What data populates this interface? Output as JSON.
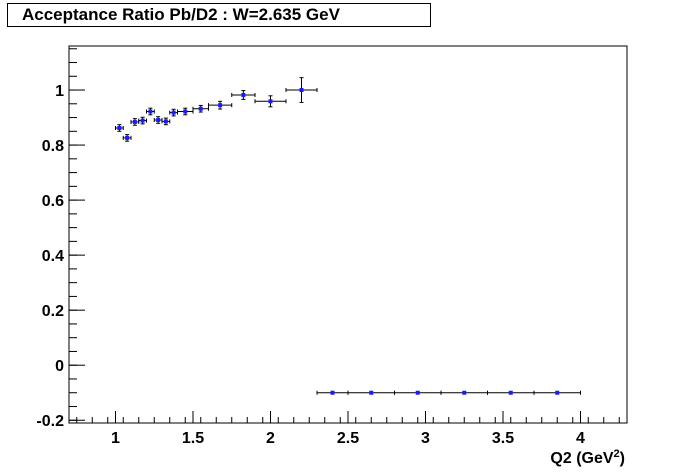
{
  "chart_data": {
    "type": "scatter",
    "title": "Acceptance Ratio Pb/D2 : W=2.635 GeV",
    "xlabel": "Q2 (GeV",
    "xlabel_sup": "2",
    "xlabel_close": ")",
    "ylabel": "",
    "xlim": [
      0.7,
      4.3
    ],
    "ylim": [
      -0.21,
      1.16
    ],
    "x_ticks": [
      1,
      1.5,
      2,
      2.5,
      3,
      3.5,
      4
    ],
    "x_tick_labels": [
      "1",
      "1.5",
      "2",
      "2.5",
      "3",
      "3.5",
      "4"
    ],
    "y_ticks": [
      -0.2,
      0,
      0.2,
      0.4,
      0.6,
      0.8,
      1
    ],
    "y_tick_labels": [
      "-0.2",
      "0",
      "0.2",
      "0.4",
      "0.6",
      "0.8",
      "1"
    ],
    "grid": false,
    "marker_color": "#1a1aff",
    "series": [
      {
        "points": [
          {
            "x": 1.025,
            "y": 0.862,
            "xerr": 0.025,
            "yerr": 0.012
          },
          {
            "x": 1.075,
            "y": 0.826,
            "xerr": 0.025,
            "yerr": 0.012
          },
          {
            "x": 1.125,
            "y": 0.884,
            "xerr": 0.025,
            "yerr": 0.012
          },
          {
            "x": 1.175,
            "y": 0.889,
            "xerr": 0.025,
            "yerr": 0.012
          },
          {
            "x": 1.225,
            "y": 0.922,
            "xerr": 0.025,
            "yerr": 0.012
          },
          {
            "x": 1.275,
            "y": 0.891,
            "xerr": 0.025,
            "yerr": 0.012
          },
          {
            "x": 1.325,
            "y": 0.886,
            "xerr": 0.025,
            "yerr": 0.012
          },
          {
            "x": 1.375,
            "y": 0.918,
            "xerr": 0.025,
            "yerr": 0.012
          },
          {
            "x": 1.45,
            "y": 0.922,
            "xerr": 0.05,
            "yerr": 0.012
          },
          {
            "x": 1.55,
            "y": 0.932,
            "xerr": 0.05,
            "yerr": 0.012
          },
          {
            "x": 1.675,
            "y": 0.945,
            "xerr": 0.075,
            "yerr": 0.014
          },
          {
            "x": 1.825,
            "y": 0.982,
            "xerr": 0.075,
            "yerr": 0.016
          },
          {
            "x": 2.0,
            "y": 0.959,
            "xerr": 0.1,
            "yerr": 0.02
          },
          {
            "x": 2.2,
            "y": 1.0,
            "xerr": 0.1,
            "yerr": 0.045
          },
          {
            "x": 2.4,
            "y": -0.1,
            "xerr": 0.1,
            "yerr": 0
          },
          {
            "x": 2.65,
            "y": -0.1,
            "xerr": 0.15,
            "yerr": 0
          },
          {
            "x": 2.95,
            "y": -0.1,
            "xerr": 0.15,
            "yerr": 0
          },
          {
            "x": 3.25,
            "y": -0.1,
            "xerr": 0.15,
            "yerr": 0
          },
          {
            "x": 3.55,
            "y": -0.1,
            "xerr": 0.15,
            "yerr": 0
          },
          {
            "x": 3.85,
            "y": -0.1,
            "xerr": 0.15,
            "yerr": 0
          }
        ]
      }
    ]
  }
}
